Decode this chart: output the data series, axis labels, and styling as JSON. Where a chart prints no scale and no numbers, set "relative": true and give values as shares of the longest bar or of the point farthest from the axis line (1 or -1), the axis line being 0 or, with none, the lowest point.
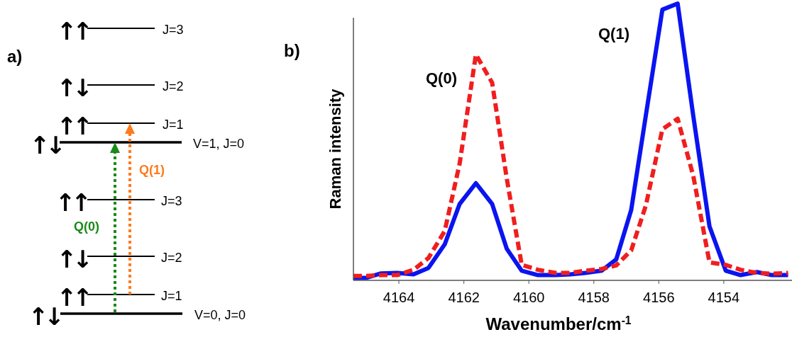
{
  "chart_data": [
    {
      "type": "other",
      "annotations": [
        "a)",
        "↑↑",
        "J=3",
        "↑↓",
        "J=2",
        "↑↑",
        "J=1",
        "↑↓",
        "V=1, J=0",
        "↑↑",
        "J=3",
        "↑↓",
        "J=2",
        "↑↑",
        "J=1",
        "↑↓",
        "V=0, J=0",
        "Q(0)",
        "Q(1)"
      ]
    },
    {
      "type": "line",
      "xlabel": "Wavenumber/cm$^{-1}$",
      "ylabel": "Raman intensity",
      "relative": true,
      "xlim": [
        4165.4,
        4151.9
      ],
      "xticks": [
        4164,
        4162,
        4160,
        4158,
        4156,
        4154
      ],
      "annotations": [
        "b)",
        "Q(0)",
        "Q(1)"
      ],
      "x": [
        4165.4,
        4165.0,
        4164.55,
        4164.05,
        4163.55,
        4163.09,
        4162.59,
        4162.13,
        4161.63,
        4161.13,
        4160.68,
        4160.22,
        4159.72,
        4159.17,
        4158.72,
        4158.26,
        4157.76,
        4157.31,
        4156.85,
        4156.4,
        4155.89,
        4155.42,
        4154.94,
        4154.44,
        4153.94,
        4153.48,
        4152.98,
        4152.52,
        4152.02
      ],
      "series": [
        {
          "color": "#0a14f0",
          "line_style": "solid",
          "values": [
            0.009,
            0.009,
            0.025,
            0.027,
            0.022,
            0.045,
            0.13,
            0.276,
            0.351,
            0.276,
            0.114,
            0.035,
            0.019,
            0.019,
            0.022,
            0.027,
            0.035,
            0.076,
            0.254,
            0.595,
            0.978,
            1.0,
            0.595,
            0.195,
            0.035,
            0.019,
            0.03,
            0.019,
            0.019
          ]
        },
        {
          "color": "#f01e1e",
          "line_style": "dashed",
          "values": [
            0.016,
            0.016,
            0.019,
            0.019,
            0.038,
            0.081,
            0.178,
            0.422,
            0.816,
            0.714,
            0.368,
            0.056,
            0.038,
            0.027,
            0.027,
            0.035,
            0.041,
            0.054,
            0.108,
            0.27,
            0.546,
            0.584,
            0.378,
            0.065,
            0.056,
            0.038,
            0.027,
            0.024,
            0.027
          ]
        }
      ]
    }
  ]
}
